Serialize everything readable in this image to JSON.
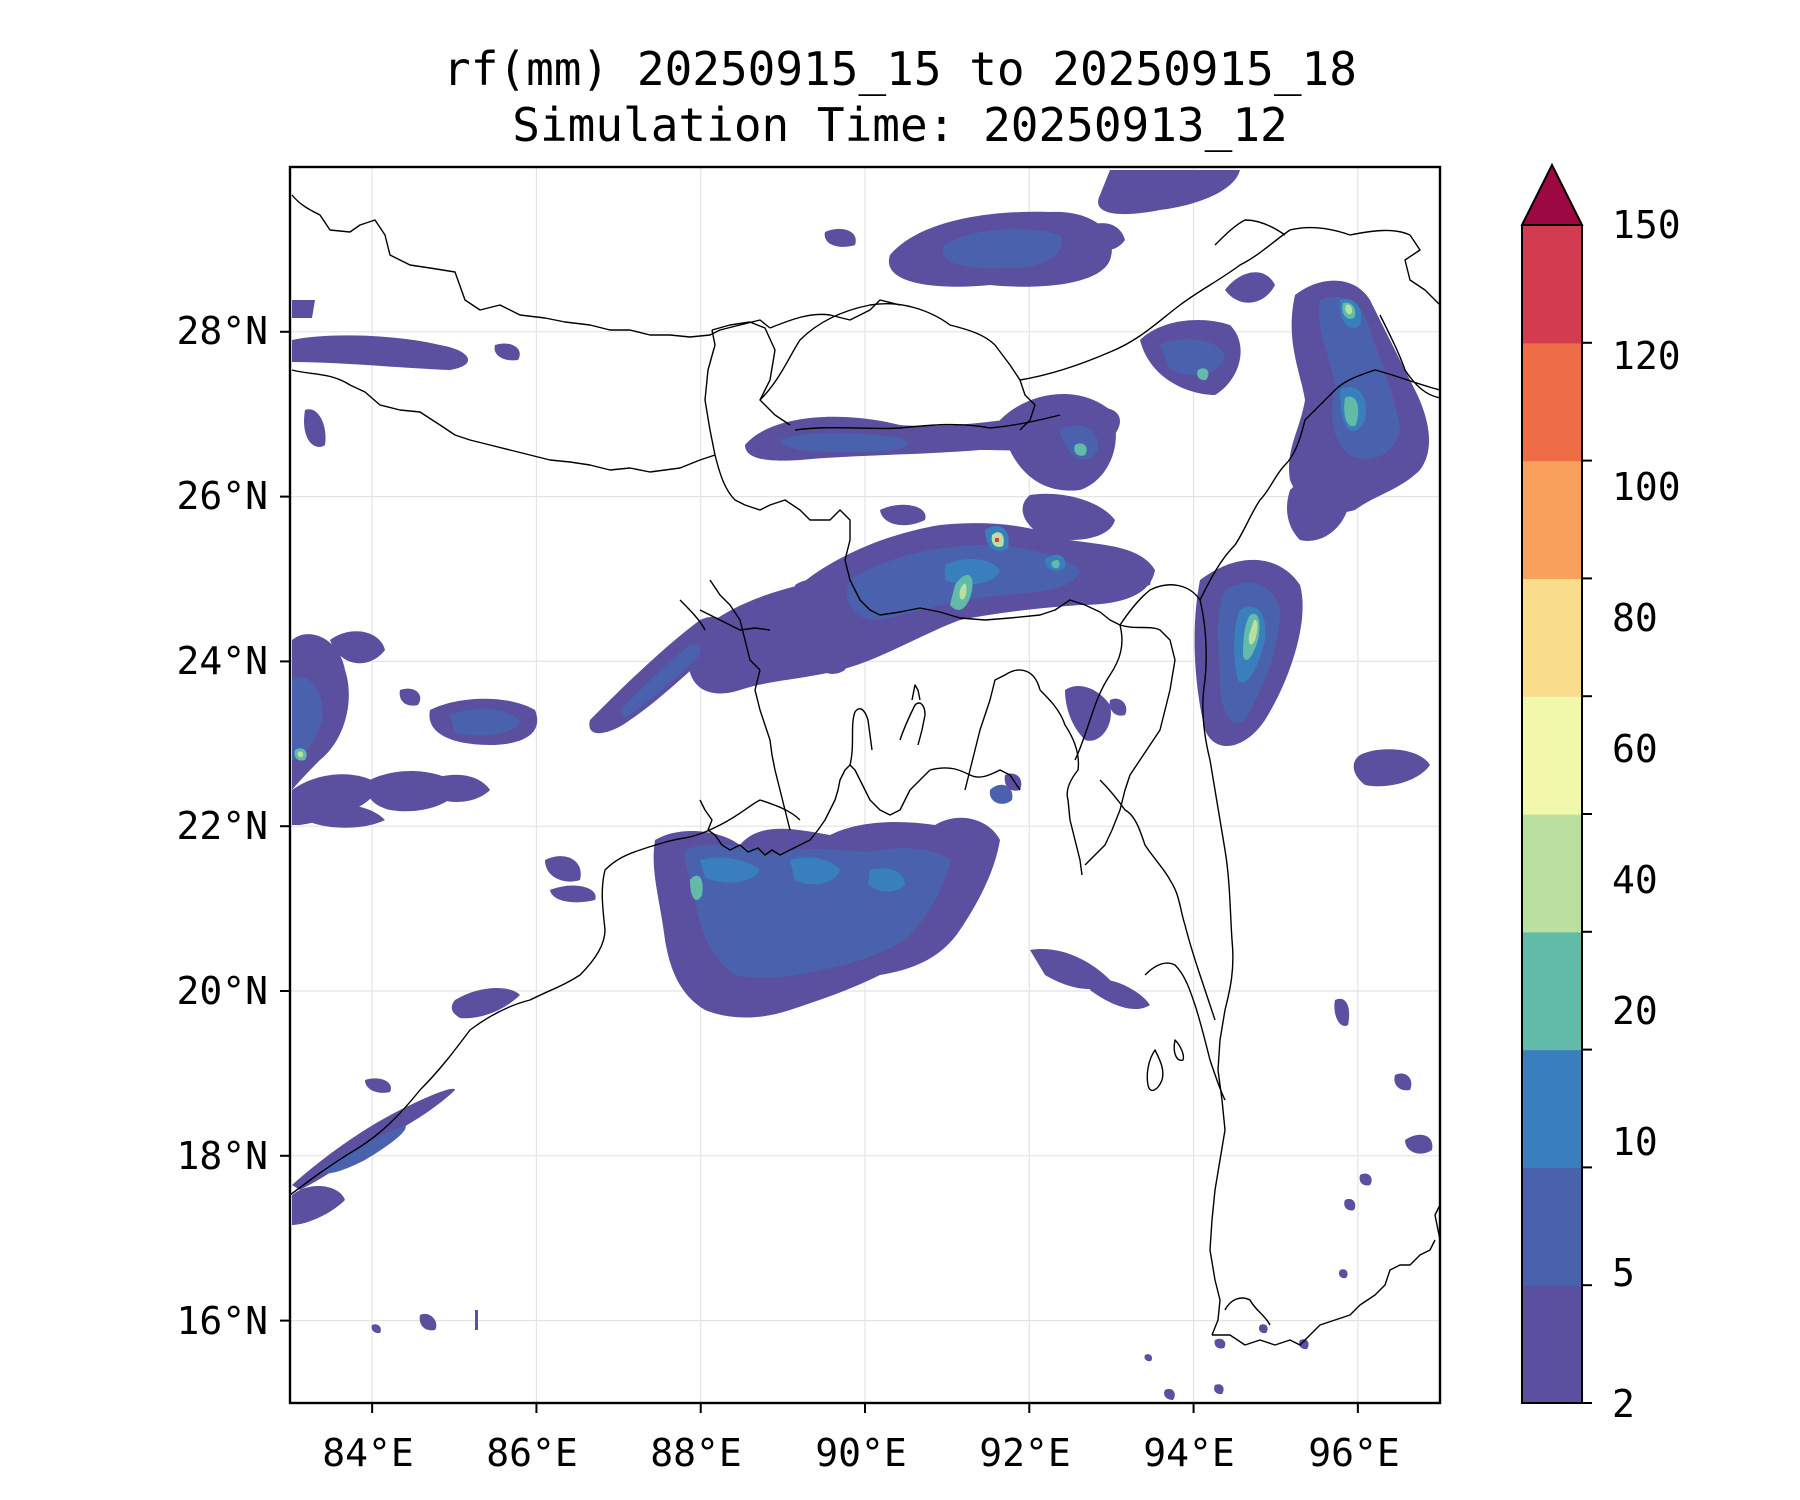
{
  "title": {
    "line1": "rf(mm) 20250915_15 to 20250915_18",
    "line2": "Simulation Time: 20250913_12"
  },
  "axes": {
    "x_ticks": [
      "84°E",
      "86°E",
      "88°E",
      "90°E",
      "92°E",
      "94°E",
      "96°E"
    ],
    "x_values": [
      84,
      86,
      88,
      90,
      92,
      94,
      96
    ],
    "y_ticks": [
      "28°N",
      "26°N",
      "24°N",
      "22°N",
      "20°N",
      "18°N",
      "16°N"
    ],
    "y_values": [
      28,
      26,
      24,
      22,
      20,
      18,
      16
    ],
    "lon_range": [
      83.0,
      97.0
    ],
    "lat_range": [
      15.0,
      30.0
    ],
    "gridlines": true
  },
  "colorbar": {
    "levels": [
      "2",
      "5",
      "10",
      "20",
      "40",
      "60",
      "80",
      "100",
      "120",
      "150"
    ],
    "colors": [
      "#5b50a0",
      "#4a62ad",
      "#3a7fbd",
      "#62bba8",
      "#b9e09e",
      "#f2f8ab",
      "#fadd8c",
      "#f7a15c",
      "#ef6d46",
      "#d33c50"
    ],
    "extend_color": "#9c0842",
    "extend": "max"
  },
  "rain_colors": {
    "r2": "#5b50a0",
    "r5": "#4a62ad",
    "r10": "#3a7fbd",
    "r20": "#62bba8",
    "r40": "#b9e09e",
    "r60": "#f2f8ab",
    "r150": "#d33c50"
  }
}
